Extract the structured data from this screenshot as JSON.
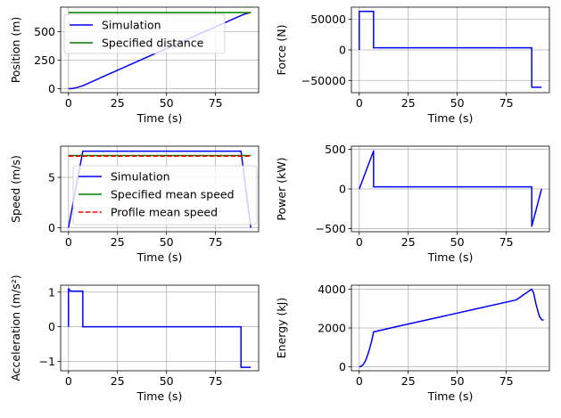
{
  "chart_data": [
    {
      "type": "line",
      "xlabel": "Time (s)",
      "ylabel": "Position (m)",
      "xlim": [
        -4,
        97
      ],
      "ylim": [
        -35,
        715
      ],
      "xticks": [
        0,
        25,
        50,
        75
      ],
      "yticks": [
        0,
        250,
        500
      ],
      "grid": true,
      "legend_position": "top-left",
      "series": [
        {
          "name": "Simulation",
          "color": "#0000ff",
          "dash": "solid",
          "points": [
            [
              0,
              0
            ],
            [
              2,
              2
            ],
            [
              4,
              8.5
            ],
            [
              6,
              19
            ],
            [
              7.5,
              27
            ],
            [
              20,
              124
            ],
            [
              40,
              276
            ],
            [
              60,
              428
            ],
            [
              80,
              580
            ],
            [
              88,
              641
            ],
            [
              90,
              655
            ],
            [
              92,
              664
            ],
            [
              93,
              667
            ]
          ]
        },
        {
          "name": "Specified distance",
          "color": "#008000",
          "dash": "solid",
          "points": [
            [
              0,
              667
            ],
            [
              93,
              667
            ]
          ]
        }
      ]
    },
    {
      "type": "line",
      "xlabel": "Time (s)",
      "ylabel": "Force (N)",
      "xlim": [
        -4,
        97
      ],
      "ylim": [
        -70000,
        70000
      ],
      "xticks": [
        0,
        25,
        50,
        75
      ],
      "yticks": [
        -50000,
        0,
        50000
      ],
      "grid": true,
      "series": [
        {
          "name": "",
          "color": "#0000ff",
          "dash": "solid",
          "points": [
            [
              0,
              0
            ],
            [
              0,
              63000
            ],
            [
              7.3,
              63000
            ],
            [
              7.3,
              3500
            ],
            [
              88,
              3500
            ],
            [
              88,
              -61000
            ],
            [
              93,
              -61000
            ]
          ]
        }
      ]
    },
    {
      "type": "line",
      "xlabel": "Time (s)",
      "ylabel": "Speed (m/s)",
      "xlim": [
        -4,
        97
      ],
      "ylim": [
        -0.4,
        8.1
      ],
      "xticks": [
        0,
        25,
        50,
        75
      ],
      "yticks": [
        0,
        5
      ],
      "grid": true,
      "legend_position": "center",
      "series": [
        {
          "name": "Simulation",
          "color": "#0000ff",
          "dash": "solid",
          "points": [
            [
              0,
              0
            ],
            [
              7.3,
              7.6
            ],
            [
              88,
              7.6
            ],
            [
              93,
              0
            ]
          ]
        },
        {
          "name": "Specified mean speed",
          "color": "#008000",
          "dash": "solid",
          "points": [
            [
              0,
              7.17
            ],
            [
              93,
              7.17
            ]
          ]
        },
        {
          "name": "Profile mean speed",
          "color": "#ff0000",
          "dash": "dashed",
          "points": [
            [
              0,
              7.1
            ],
            [
              93,
              7.1
            ]
          ]
        }
      ]
    },
    {
      "type": "line",
      "xlabel": "Time (s)",
      "ylabel": "Power (kW)",
      "xlim": [
        -4,
        97
      ],
      "ylim": [
        -540,
        540
      ],
      "xticks": [
        0,
        25,
        50,
        75
      ],
      "yticks": [
        -500,
        0,
        500
      ],
      "grid": true,
      "series": [
        {
          "name": "",
          "color": "#0000ff",
          "dash": "solid",
          "points": [
            [
              0,
              0
            ],
            [
              7.3,
              480
            ],
            [
              7.3,
              27
            ],
            [
              88,
              27
            ],
            [
              88,
              -470
            ],
            [
              93,
              0
            ]
          ]
        }
      ]
    },
    {
      "type": "line",
      "xlabel": "Time (s)",
      "ylabel": "Acceleration (m/s²)",
      "xlim": [
        -4,
        97
      ],
      "ylim": [
        -1.27,
        1.2
      ],
      "xticks": [
        0,
        25,
        50,
        75
      ],
      "yticks": [
        -1,
        0,
        1
      ],
      "grid": true,
      "series": [
        {
          "name": "",
          "color": "#0000ff",
          "dash": "solid",
          "points": [
            [
              0,
              0
            ],
            [
              0,
              1.1
            ],
            [
              1,
              1.03
            ],
            [
              7.3,
              1.03
            ],
            [
              7.3,
              0
            ],
            [
              88,
              0
            ],
            [
              88,
              -1.17
            ],
            [
              93,
              -1.17
            ]
          ]
        }
      ]
    },
    {
      "type": "line",
      "xlabel": "Time (s)",
      "ylabel": "Energy (kJ)",
      "xlim": [
        -4,
        97
      ],
      "ylim": [
        -200,
        4200
      ],
      "xticks": [
        0,
        25,
        50,
        75
      ],
      "yticks": [
        0,
        2000,
        4000
      ],
      "grid": true,
      "series": [
        {
          "name": "",
          "color": "#0000ff",
          "dash": "solid",
          "points": [
            [
              0,
              0
            ],
            [
              1,
              30
            ],
            [
              2,
              120
            ],
            [
              3,
              280
            ],
            [
              4,
              520
            ],
            [
              5,
              830
            ],
            [
              6,
              1200
            ],
            [
              7,
              1630
            ],
            [
              7.3,
              1800
            ],
            [
              20,
              2090
            ],
            [
              40,
              2540
            ],
            [
              60,
              2990
            ],
            [
              80,
              3440
            ],
            [
              88,
              4000
            ],
            [
              89,
              3780
            ],
            [
              90,
              3300
            ],
            [
              91,
              2900
            ],
            [
              92,
              2580
            ],
            [
              93,
              2430
            ],
            [
              94,
              2400
            ]
          ]
        }
      ]
    }
  ]
}
